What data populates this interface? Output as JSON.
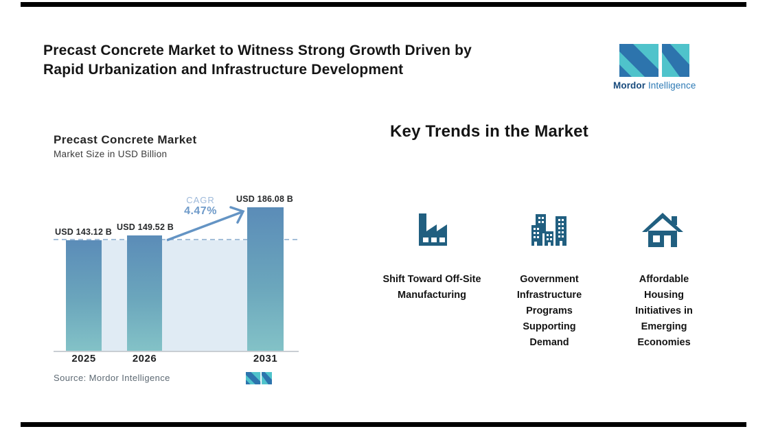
{
  "headline": {
    "line1": "Precast Concrete Market to Witness Strong Growth Driven by",
    "line2": "Rapid Urbanization and Infrastructure Development"
  },
  "logo": {
    "brand_bold": "Mordor",
    "brand_light": "Intelligence"
  },
  "chart": {
    "title": "Precast Concrete Market",
    "subtitle": "Market Size in USD Billion",
    "cagr_label": "CAGR",
    "cagr_value": "4.47%",
    "source": "Source: Mordor Intelligence"
  },
  "chart_data": {
    "type": "bar",
    "title": "Precast Concrete Market",
    "subtitle": "Market Size in USD Billion",
    "categories": [
      "2025",
      "2026",
      "2031"
    ],
    "values": [
      143.12,
      149.52,
      186.08
    ],
    "value_labels": [
      "USD 143.12 B",
      "USD 149.52 B",
      "USD 186.08 B"
    ],
    "ylabel": "Market Size in USD Billion",
    "xlabel": "",
    "ylim": [
      0,
      210
    ],
    "grid": false,
    "legend": "none",
    "annotations": {
      "cagr_label": "CAGR",
      "cagr_value": "4.47%",
      "dashed_reference_level": 143.12
    },
    "source": "Source: Mordor Intelligence"
  },
  "trends": {
    "heading": "Key Trends in the Market",
    "items": [
      {
        "icon": "factory-icon",
        "label": "Shift Toward Off-Site Manufacturing"
      },
      {
        "icon": "buildings-icon",
        "label": "Government Infrastructure Programs Supporting Demand"
      },
      {
        "icon": "house-icon",
        "label": "Affordable Housing Initiatives in Emerging Economies"
      }
    ]
  },
  "colors": {
    "brand_dark_blue": "#2d74ad",
    "brand_teal": "#4fc3cb",
    "trend_icon_blue": "#215f80",
    "bar_gradient_top": "#5b8cb8",
    "bar_gradient_bottom": "#83c2c7",
    "background_band": "#e0ebf4",
    "cagr_blue": "#6e9ac9"
  }
}
